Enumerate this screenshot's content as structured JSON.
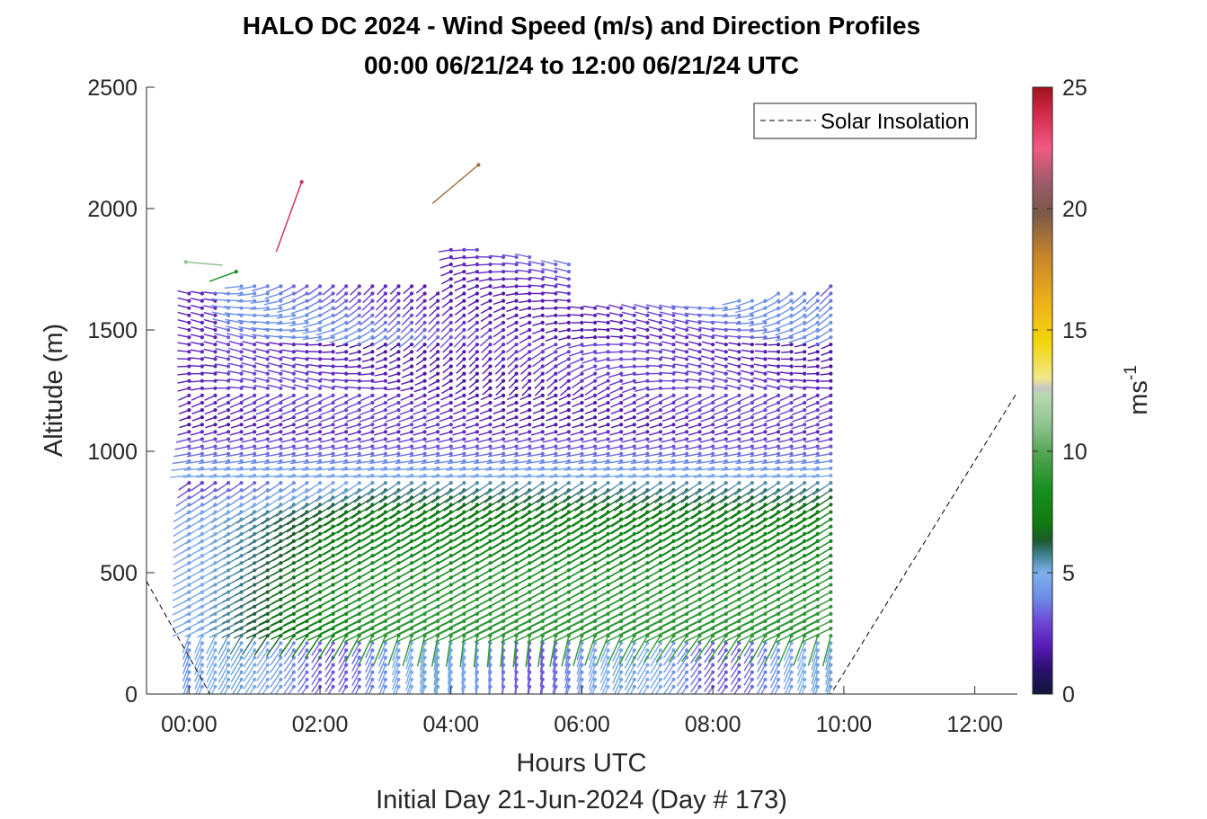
{
  "chart_data": {
    "type": "quiver",
    "title": "HALO DC 2024 - Wind Speed (m/s) and Direction Profiles",
    "subtitle": "00:00 06/21/24 to 12:00 06/21/24  UTC",
    "xlabel": "Hours UTC",
    "xlabel2": "Initial Day 21-Jun-2024 (Day # 173)",
    "ylabel": "Altitude (m)",
    "xlim": [
      -0.65,
      12.65
    ],
    "ylim": [
      0,
      2500
    ],
    "xticks": [
      0,
      2,
      4,
      6,
      8,
      10,
      12
    ],
    "xtick_labels": [
      "00:00",
      "02:00",
      "04:00",
      "06:00",
      "08:00",
      "10:00",
      "12:00"
    ],
    "yticks": [
      0,
      500,
      1000,
      1500,
      2000,
      2500
    ],
    "ytick_labels": [
      "0",
      "500",
      "1000",
      "1500",
      "2000",
      "2500"
    ],
    "legend": {
      "entries": [
        "Solar Insolation"
      ],
      "location": "top-right"
    },
    "colorbar": {
      "label": "ms",
      "label_exponent": "-1",
      "range": [
        0,
        25
      ],
      "ticks": [
        0,
        5,
        10,
        15,
        20,
        25
      ],
      "tick_labels": [
        "0",
        "5",
        "10",
        "15",
        "20",
        "25"
      ],
      "stops": [
        [
          0,
          "#10163a"
        ],
        [
          1,
          "#2a0f6e"
        ],
        [
          2,
          "#5a1ab8"
        ],
        [
          3,
          "#6d4ad6"
        ],
        [
          4,
          "#6d8fe6"
        ],
        [
          5,
          "#7fb0ee"
        ],
        [
          5.8,
          "#3a7d86"
        ],
        [
          6.3,
          "#1d5a2e"
        ],
        [
          7,
          "#0e7a10"
        ],
        [
          8.5,
          "#1a9022"
        ],
        [
          10,
          "#56a656"
        ],
        [
          11,
          "#8cc28c"
        ],
        [
          12.3,
          "#b8d9b0"
        ],
        [
          12.6,
          "#c6c6c6"
        ],
        [
          13,
          "#f2e68a"
        ],
        [
          14.5,
          "#f2d60a"
        ],
        [
          16,
          "#f0b418"
        ],
        [
          18,
          "#c8862a"
        ],
        [
          19.8,
          "#7b5a48"
        ],
        [
          21,
          "#9b5a6a"
        ],
        [
          22.5,
          "#f05a84"
        ],
        [
          24,
          "#d02848"
        ],
        [
          25,
          "#a0121a"
        ]
      ]
    },
    "solar_insolation": {
      "x": [
        -0.65,
        0.32,
        9.8,
        12.65
      ],
      "y": [
        465,
        0,
        0,
        1245
      ]
    },
    "wind_profiles": {
      "time_start": 0.0,
      "time_end": 9.8,
      "time_step": 0.2,
      "altitude_start": 30,
      "altitude_step": 30,
      "top_altitude_start": 1700,
      "top_altitude_end": 1700,
      "isolated_barbs": [
        {
          "t": -0.05,
          "alt": 1780,
          "speed": 11,
          "dir_deg": 95
        },
        {
          "t": 0.72,
          "alt": 1740,
          "speed": 8,
          "dir_deg": 250
        },
        {
          "t": 1.72,
          "alt": 2110,
          "speed": 24,
          "dir_deg": 200
        },
        {
          "t": 4.42,
          "alt": 2180,
          "speed": 19,
          "dir_deg": 230
        }
      ]
    }
  }
}
